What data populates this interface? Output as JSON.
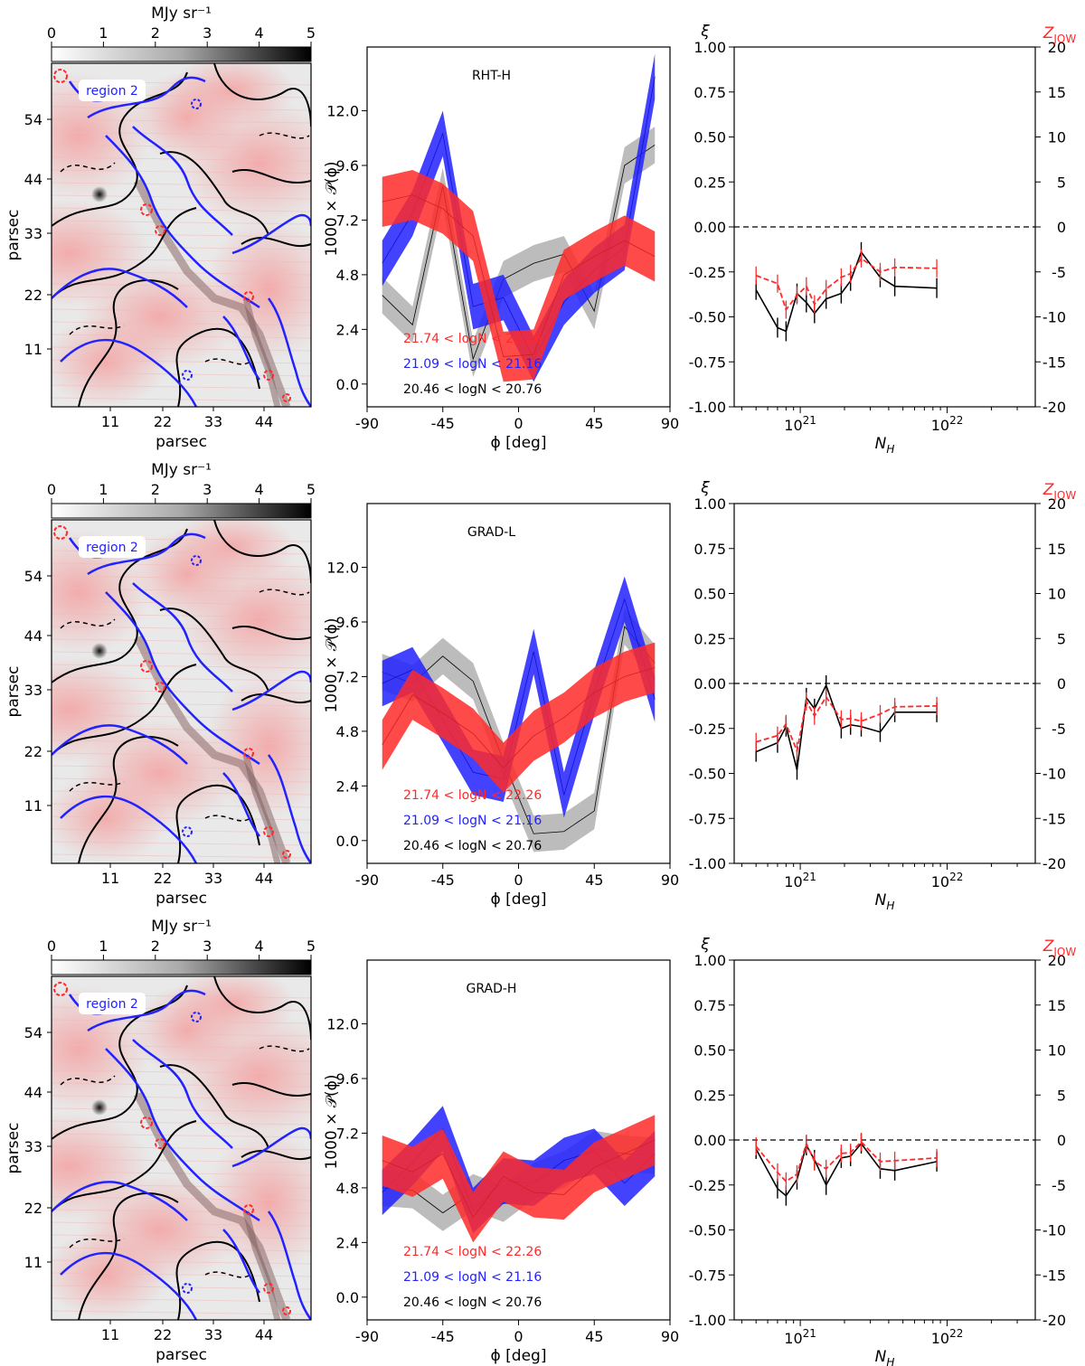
{
  "colorbar": {
    "label": "MJy sr⁻¹",
    "ticks": [
      "0",
      "1",
      "2",
      "3",
      "4",
      "5"
    ]
  },
  "map": {
    "xlabel": "parsec",
    "ylabel": "parsec",
    "xticks": [
      "11",
      "22",
      "33",
      "44"
    ],
    "yticks": [
      "54",
      "44",
      "33",
      "22",
      "11"
    ],
    "region_label": "region 2"
  },
  "colors": {
    "red": "#ff2a2a",
    "blue": "#2222ff",
    "gray": "#b0b0b0",
    "map_red": "#f5a8a8"
  },
  "chart_data": [
    {
      "type": "area",
      "title": "RHT-H",
      "xlabel": "ϕ [deg]",
      "ylabel": "1000 × 𝒫(ϕ)",
      "xlim": [
        -90,
        90
      ],
      "ylim": [
        -1.0,
        14.8
      ],
      "xticks": [
        "-90",
        "-45",
        "0",
        "45",
        "90"
      ],
      "yticks": [
        "0.0",
        "2.4",
        "4.8",
        "7.2",
        "9.6",
        "12.0"
      ],
      "legend": [
        "21.74 < logN < 22.26",
        "21.09 < logN < 21.16",
        "20.46 < logN < 20.76"
      ],
      "x": [
        -81,
        -63,
        -45,
        -27,
        -9,
        9,
        27,
        45,
        63,
        81
      ],
      "series": [
        {
          "color": "gray",
          "values": [
            3.9,
            2.6,
            8.7,
            1.1,
            4.6,
            5.3,
            5.7,
            3.2,
            9.6,
            10.5
          ],
          "spread": 0.8
        },
        {
          "color": "blue",
          "values": [
            5.3,
            7.5,
            11.0,
            3.4,
            3.8,
            1.1,
            3.6,
            5.0,
            6.0,
            13.5
          ],
          "spread": 1.0
        },
        {
          "color": "red",
          "values": [
            8.0,
            8.3,
            7.7,
            6.5,
            1.2,
            1.3,
            4.8,
            5.6,
            6.3,
            5.6
          ],
          "spread": 1.1
        }
      ]
    },
    {
      "type": "area",
      "title": "GRAD-L",
      "xlabel": "ϕ [deg]",
      "ylabel": "1000 × 𝒫(ϕ)",
      "xlim": [
        -90,
        90
      ],
      "ylim": [
        -1.0,
        14.8
      ],
      "xticks": [
        "-90",
        "-45",
        "0",
        "45",
        "90"
      ],
      "yticks": [
        "0.0",
        "2.4",
        "4.8",
        "7.2",
        "9.6",
        "12.0"
      ],
      "legend": [
        "21.74 < logN < 22.26",
        "21.09 < logN < 21.16",
        "20.46 < logN < 20.76"
      ],
      "x": [
        -81,
        -63,
        -45,
        -27,
        -9,
        9,
        27,
        45,
        63,
        81
      ],
      "series": [
        {
          "color": "gray",
          "values": [
            7.4,
            6.9,
            8.1,
            7.0,
            3.5,
            0.3,
            0.4,
            1.3,
            9.4,
            7.8
          ],
          "spread": 0.8
        },
        {
          "color": "blue",
          "values": [
            6.9,
            7.5,
            5.3,
            3.0,
            2.7,
            8.3,
            2.0,
            6.5,
            10.6,
            6.2
          ],
          "spread": 1.0
        },
        {
          "color": "red",
          "values": [
            4.2,
            6.4,
            5.6,
            4.7,
            3.2,
            4.6,
            5.4,
            6.5,
            7.2,
            7.6
          ],
          "spread": 1.1
        }
      ]
    },
    {
      "type": "area",
      "title": "GRAD-H",
      "xlabel": "ϕ [deg]",
      "ylabel": "1000 × 𝒫(ϕ)",
      "xlim": [
        -90,
        90
      ],
      "ylim": [
        -1.0,
        14.8
      ],
      "xticks": [
        "-90",
        "-45",
        "0",
        "45",
        "90"
      ],
      "yticks": [
        "0.0",
        "2.4",
        "4.8",
        "7.2",
        "9.6",
        "12.0"
      ],
      "legend": [
        "21.74 < logN < 22.26",
        "21.09 < logN < 21.16",
        "20.46 < logN < 20.76"
      ],
      "x": [
        -81,
        -63,
        -45,
        -27,
        -9,
        9,
        27,
        45,
        63,
        81
      ],
      "series": [
        {
          "color": "gray",
          "values": [
            4.8,
            4.7,
            3.7,
            4.6,
            4.1,
            5.1,
            5.6,
            6.5,
            6.3,
            6.2
          ],
          "spread": 0.8
        },
        {
          "color": "blue",
          "values": [
            4.6,
            5.9,
            7.4,
            3.8,
            5.1,
            5.0,
            6.0,
            6.4,
            5.0,
            6.3
          ],
          "spread": 1.0
        },
        {
          "color": "red",
          "values": [
            6.0,
            5.5,
            6.3,
            3.5,
            5.3,
            4.6,
            4.5,
            5.7,
            6.3,
            6.9
          ],
          "spread": 1.1
        }
      ]
    },
    {
      "type": "line",
      "xlabel": "N_H",
      "ylabel": "ξ",
      "ylabel2": "Z_JOW",
      "xscale": "log",
      "xlim": [
        1e+20,
        1e+23
      ],
      "ylim": [
        -1.0,
        1.0
      ],
      "ylim2": [
        -20,
        20
      ],
      "yticks": [
        "-1.00",
        "-0.75",
        "-0.50",
        "-0.25",
        "0.00",
        "0.25",
        "0.50",
        "0.75",
        "1.00"
      ],
      "y2ticks": [
        "-20",
        "-15",
        "-10",
        "-5",
        "0",
        "5",
        "10",
        "15",
        "20"
      ],
      "xticks": [
        "10^21",
        "10^22"
      ],
      "x": [
        5e+20,
        7e+20,
        8e+20,
        9.5e+20,
        1.1e+21,
        1.25e+21,
        1.5e+21,
        1.9e+21,
        2.2e+21,
        2.6e+21,
        3.5e+21,
        4.4e+21,
        8.5e+21
      ],
      "series": [
        {
          "name": "ξ",
          "color": "black",
          "style": "solid",
          "values": [
            -0.35,
            -0.56,
            -0.58,
            -0.37,
            -0.42,
            -0.48,
            -0.4,
            -0.37,
            -0.3,
            -0.14,
            -0.28,
            -0.33,
            -0.34
          ]
        },
        {
          "name": "Z_JOW",
          "color": "red",
          "style": "dashed",
          "values": [
            -5.4,
            -6.3,
            -9.2,
            -7.6,
            -6.6,
            -8.6,
            -6.9,
            -5.6,
            -5.2,
            -3.5,
            -5.0,
            -4.5,
            -4.6
          ]
        }
      ]
    },
    {
      "type": "line",
      "xlabel": "N_H",
      "ylabel": "ξ",
      "ylabel2": "Z_JOW",
      "xscale": "log",
      "xlim": [
        1e+20,
        1e+23
      ],
      "ylim": [
        -1.0,
        1.0
      ],
      "ylim2": [
        -20,
        20
      ],
      "yticks": [
        "-1.00",
        "-0.75",
        "-0.50",
        "-0.25",
        "0.00",
        "0.25",
        "0.50",
        "0.75",
        "1.00"
      ],
      "y2ticks": [
        "-20",
        "-15",
        "-10",
        "-5",
        "0",
        "5",
        "10",
        "15",
        "20"
      ],
      "xticks": [
        "10^21",
        "10^22"
      ],
      "x": [
        5e+20,
        7e+20,
        8e+20,
        9.5e+20,
        1.1e+21,
        1.25e+21,
        1.5e+21,
        1.9e+21,
        2.2e+21,
        2.6e+21,
        3.5e+21,
        4.4e+21,
        8.5e+21
      ],
      "series": [
        {
          "name": "ξ",
          "color": "black",
          "style": "solid",
          "values": [
            -0.38,
            -0.33,
            -0.24,
            -0.48,
            -0.08,
            -0.14,
            -0.01,
            -0.25,
            -0.23,
            -0.24,
            -0.27,
            -0.16,
            -0.16
          ]
        },
        {
          "name": "Z_JOW",
          "color": "red",
          "style": "dashed",
          "values": [
            -6.5,
            -5.8,
            -4.5,
            -7.5,
            -2.0,
            -3.6,
            -1.5,
            -4.0,
            -3.9,
            -4.2,
            -3.4,
            -2.6,
            -2.5
          ]
        }
      ]
    },
    {
      "type": "line",
      "xlabel": "N_H",
      "ylabel": "ξ",
      "ylabel2": "Z_JOW",
      "xscale": "log",
      "xlim": [
        1e+20,
        1e+23
      ],
      "ylim": [
        -1.0,
        1.0
      ],
      "ylim2": [
        -20,
        20
      ],
      "yticks": [
        "-1.00",
        "-0.75",
        "-0.50",
        "-0.25",
        "0.00",
        "0.25",
        "0.50",
        "0.75",
        "1.00"
      ],
      "y2ticks": [
        "-20",
        "-15",
        "-10",
        "-5",
        "0",
        "5",
        "10",
        "15",
        "20"
      ],
      "xticks": [
        "10^21",
        "10^22"
      ],
      "x": [
        5e+20,
        7e+20,
        8e+20,
        9.5e+20,
        1.1e+21,
        1.25e+21,
        1.5e+21,
        1.9e+21,
        2.2e+21,
        2.6e+21,
        3.5e+21,
        4.4e+21,
        8.5e+21
      ],
      "series": [
        {
          "name": "ξ",
          "color": "black",
          "style": "solid",
          "values": [
            -0.05,
            -0.27,
            -0.31,
            -0.22,
            -0.03,
            -0.11,
            -0.25,
            -0.1,
            -0.09,
            -0.02,
            -0.16,
            -0.17,
            -0.12
          ]
        },
        {
          "name": "Z_JOW",
          "color": "red",
          "style": "dashed",
          "values": [
            -0.7,
            -3.6,
            -4.6,
            -3.8,
            -0.4,
            -2.4,
            -3.2,
            -1.5,
            -1.4,
            -0.2,
            -2.4,
            -2.3,
            -2.0
          ]
        }
      ]
    }
  ]
}
